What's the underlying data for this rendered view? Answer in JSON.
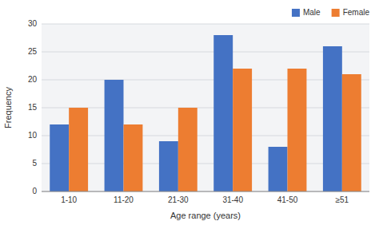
{
  "chart_data": {
    "type": "bar",
    "categories": [
      "1-10",
      "11-20",
      "21-30",
      "31-40",
      "41-50",
      "≥51"
    ],
    "series": [
      {
        "name": "Male",
        "color": "#4472C4",
        "values": [
          12,
          20,
          9,
          28,
          8,
          26
        ]
      },
      {
        "name": "Female",
        "color": "#ED7D31",
        "values": [
          15,
          12,
          15,
          22,
          22,
          21
        ]
      }
    ],
    "xlabel": "Age range (years)",
    "ylabel": "Frequency",
    "ylim": [
      0,
      30
    ],
    "yticks": [
      0,
      5,
      10,
      15,
      20,
      25,
      30
    ],
    "grid": true,
    "legend": "upper right"
  }
}
